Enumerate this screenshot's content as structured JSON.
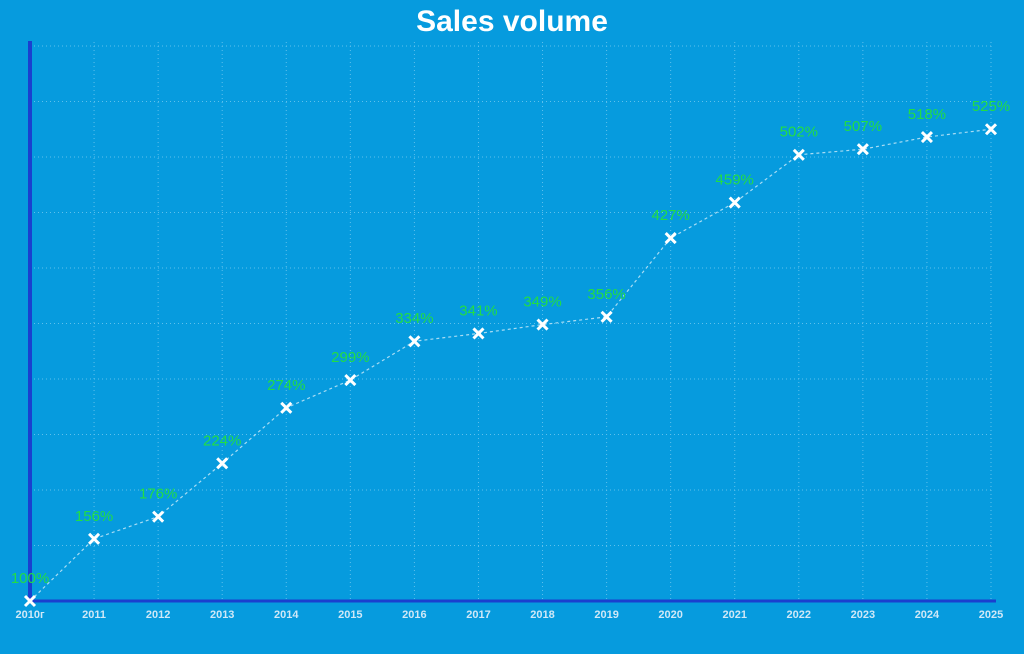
{
  "chart_data": {
    "type": "line",
    "title": "Sales volume",
    "categories": [
      "2010г",
      "2011",
      "2012",
      "2013",
      "2014",
      "2015",
      "2016",
      "2017",
      "2018",
      "2019",
      "2020",
      "2021",
      "2022",
      "2023",
      "2024",
      "2025"
    ],
    "values": [
      100,
      156,
      176,
      224,
      274,
      299,
      334,
      341,
      349,
      356,
      427,
      459,
      502,
      507,
      518,
      525
    ],
    "value_labels": [
      "100%",
      "156%",
      "176%",
      "224%",
      "274%",
      "299%",
      "334%",
      "341%",
      "349%",
      "356%",
      "427%",
      "459%",
      "502%",
      "507%",
      "518%",
      "525%"
    ],
    "color": "#ffffff",
    "label_color": "#22dd44",
    "ylim": [
      100,
      600
    ],
    "yticks": [
      150,
      200,
      250,
      300,
      350,
      400,
      450,
      500,
      550,
      600
    ],
    "grid": true
  }
}
